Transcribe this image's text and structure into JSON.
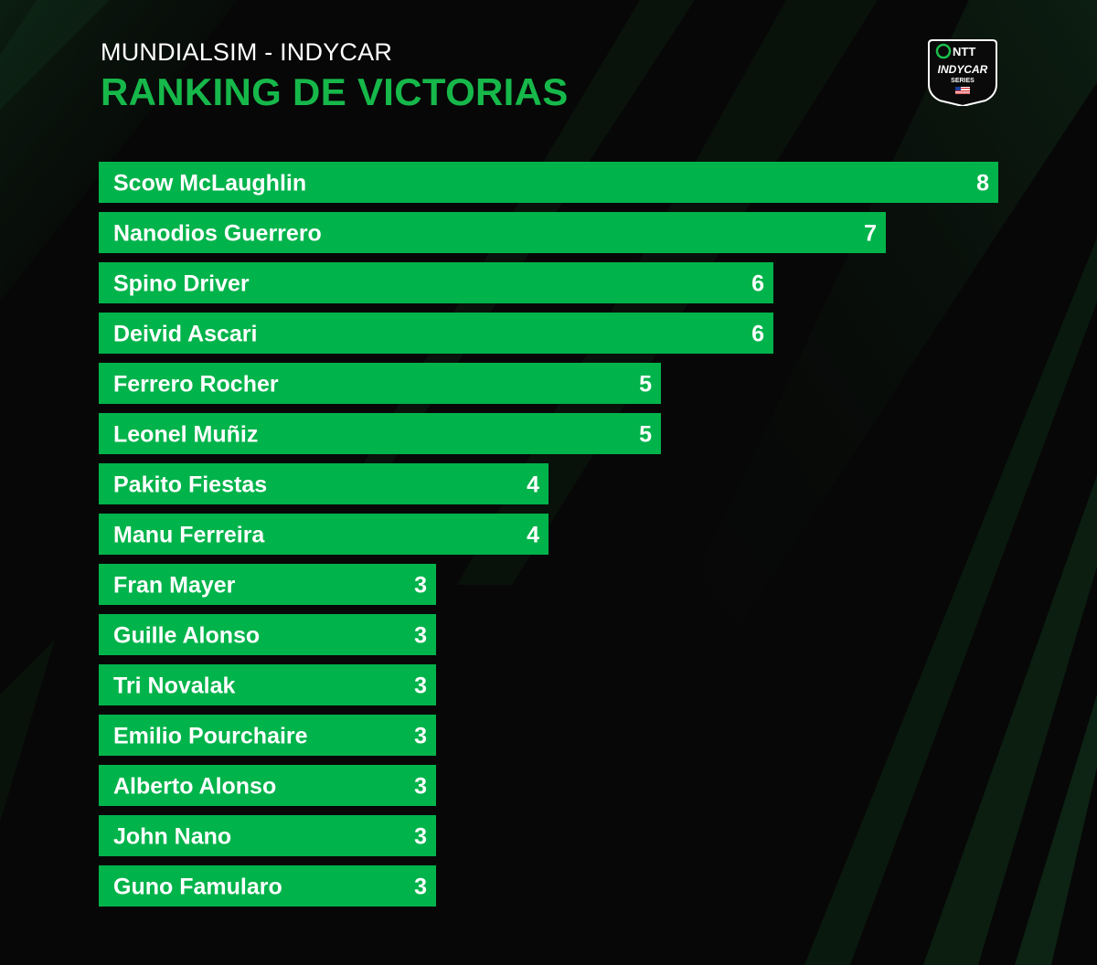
{
  "header": {
    "subtitle": "MUNDIALSIM - INDYCAR",
    "title": "RANKING DE VICTORIAS"
  },
  "logo": {
    "brand": "NTT",
    "series": "INDYCAR",
    "series_sub": "SERIES"
  },
  "colors": {
    "background": "#070707",
    "bar": "#00b34a",
    "title": "#16b84a",
    "text": "#ffffff"
  },
  "chart_data": {
    "type": "bar",
    "orientation": "horizontal",
    "title": "RANKING DE VICTORIAS",
    "categories": [
      "Scow McLaughlin",
      "Nanodios Guerrero",
      "Spino Driver",
      "Deivid Ascari",
      "Ferrero Rocher",
      "Leonel Muñiz",
      "Pakito Fiestas",
      "Manu Ferreira",
      "Fran Mayer",
      "Guille Alonso",
      "Tri Novalak",
      "Emilio Pourchaire",
      "Alberto Alonso",
      "John Nano",
      "Guno Famularo"
    ],
    "values": [
      8,
      7,
      6,
      6,
      5,
      5,
      4,
      4,
      3,
      3,
      3,
      3,
      3,
      3,
      3
    ],
    "xlim": [
      0,
      8
    ],
    "grid": false,
    "legend": "none",
    "data_labels": true
  }
}
